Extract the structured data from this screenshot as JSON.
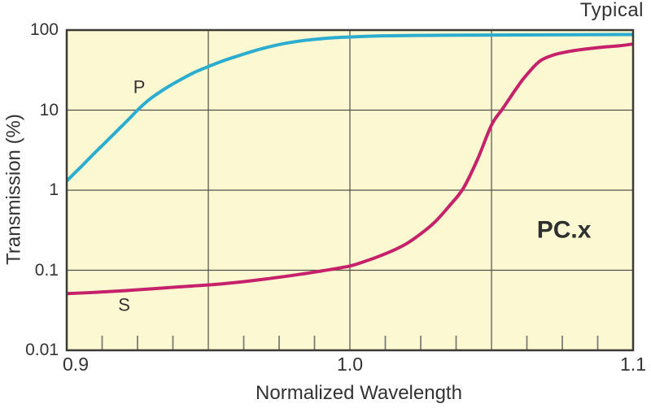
{
  "title_note": "Typical",
  "chart_data": {
    "type": "line",
    "title": "",
    "xlabel": "Normalized Wavelength",
    "ylabel": "Transmission (%)",
    "x_range": [
      0.9,
      1.1
    ],
    "y_scale": "log",
    "y_range": [
      0.01,
      100
    ],
    "grid": true,
    "x_tick_labels": [
      "0.9",
      "1.0",
      "1.1"
    ],
    "x_tick_values": [
      0.9,
      1.0,
      1.1
    ],
    "x_gridlines": [
      0.95,
      1.0,
      1.05
    ],
    "x_minor_tick_step": 0.0125,
    "y_tick_labels": [
      "100",
      "10",
      "1",
      "0.1",
      "0.01"
    ],
    "y_tick_values": [
      100,
      10,
      1,
      0.1,
      0.01
    ],
    "y_gridlines": [
      10,
      1,
      0.1
    ],
    "legend_position": "inline-labels",
    "colors": {
      "plot_bg": "#FBF8D2",
      "grid": "#51514A",
      "border": "#3B3B35",
      "minor_tick": "#7D7D72",
      "text": "#333333",
      "p_curve": "#2CADD0",
      "s_curve": "#C5226B"
    },
    "series": [
      {
        "name": "P",
        "color": "#2CADD0",
        "label": {
          "text": "P",
          "x": 0.9256,
          "y_value": 19.5
        },
        "points": [
          [
            0.9,
            1.3
          ],
          [
            0.9025,
            1.6
          ],
          [
            0.905,
            1.95
          ],
          [
            0.9075,
            2.4
          ],
          [
            0.91,
            2.95
          ],
          [
            0.9125,
            3.6
          ],
          [
            0.915,
            4.4
          ],
          [
            0.9175,
            5.4
          ],
          [
            0.92,
            6.6
          ],
          [
            0.9225,
            8.1
          ],
          [
            0.925,
            10
          ],
          [
            0.9275,
            12.1
          ],
          [
            0.93,
            14.3
          ],
          [
            0.935,
            18.8
          ],
          [
            0.94,
            23.8
          ],
          [
            0.945,
            29.5
          ],
          [
            0.95,
            35
          ],
          [
            0.955,
            41
          ],
          [
            0.96,
            47
          ],
          [
            0.965,
            53.5
          ],
          [
            0.97,
            60
          ],
          [
            0.975,
            66
          ],
          [
            0.98,
            71
          ],
          [
            0.985,
            75
          ],
          [
            0.99,
            78
          ],
          [
            0.995,
            80.5
          ],
          [
            1.0,
            82
          ],
          [
            1.01,
            84.5
          ],
          [
            1.02,
            85.5
          ],
          [
            1.04,
            86.5
          ],
          [
            1.06,
            87
          ],
          [
            1.08,
            87.5
          ],
          [
            1.1,
            88
          ]
        ]
      },
      {
        "name": "S",
        "color": "#C5226B",
        "label": {
          "text": "S",
          "x": 0.9203,
          "y_value": 0.0366
        },
        "points": [
          [
            0.9,
            0.051
          ],
          [
            0.91,
            0.053
          ],
          [
            0.92,
            0.0555
          ],
          [
            0.93,
            0.0585
          ],
          [
            0.94,
            0.062
          ],
          [
            0.95,
            0.0655
          ],
          [
            0.96,
            0.0705
          ],
          [
            0.97,
            0.0775
          ],
          [
            0.98,
            0.0865
          ],
          [
            0.99,
            0.098
          ],
          [
            1.0,
            0.113
          ],
          [
            1.005,
            0.128
          ],
          [
            1.01,
            0.148
          ],
          [
            1.015,
            0.175
          ],
          [
            1.02,
            0.215
          ],
          [
            1.025,
            0.285
          ],
          [
            1.03,
            0.4
          ],
          [
            1.035,
            0.63
          ],
          [
            1.04,
            1.05
          ],
          [
            1.045,
            2.4
          ],
          [
            1.05,
            6.5
          ],
          [
            1.054,
            10.5
          ],
          [
            1.058,
            17
          ],
          [
            1.061,
            24
          ],
          [
            1.064,
            32
          ],
          [
            1.066,
            38
          ],
          [
            1.068,
            43
          ],
          [
            1.072,
            49
          ],
          [
            1.076,
            53
          ],
          [
            1.08,
            56
          ],
          [
            1.085,
            59
          ],
          [
            1.09,
            61.5
          ],
          [
            1.095,
            63.5
          ],
          [
            1.1,
            67
          ]
        ]
      }
    ],
    "annotations": [
      {
        "text": "PC.x",
        "x": 1.0756,
        "y_value": 0.318,
        "bold": true
      }
    ]
  }
}
